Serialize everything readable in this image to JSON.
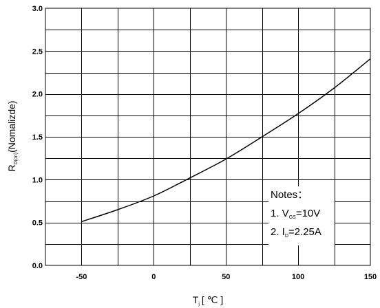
{
  "chart_data": {
    "type": "line",
    "title": "",
    "xlabel": {
      "main": "T",
      "sub": "j",
      "suffix": "[ ℃ ]"
    },
    "ylabel": {
      "main": "R",
      "sub": "D(on)",
      "suffix": "(Nomalizde)"
    },
    "xlim": [
      -75,
      150
    ],
    "ylim": [
      0.0,
      3.0
    ],
    "x_ticks": [
      -50,
      0,
      50,
      100,
      150
    ],
    "y_ticks": [
      "0.0",
      "0.5",
      "1.0",
      "1.5",
      "2.0",
      "2.5",
      "3.0"
    ],
    "grid": true,
    "grid_x_step": 25,
    "grid_y_step": 0.25,
    "series": [
      {
        "x": [
          -50,
          -25,
          0,
          25,
          50,
          75,
          100,
          125,
          150
        ],
        "y": [
          0.51,
          0.65,
          0.81,
          1.02,
          1.24,
          1.5,
          1.77,
          2.07,
          2.41
        ]
      }
    ],
    "notes": {
      "title": "Notes",
      "colon": "：",
      "line1": {
        "prefix": "1. V",
        "sub": "GS",
        "suffix": "=10V"
      },
      "line2": {
        "prefix": "2. I",
        "sub": "D",
        "suffix": "=2.25A"
      }
    }
  }
}
